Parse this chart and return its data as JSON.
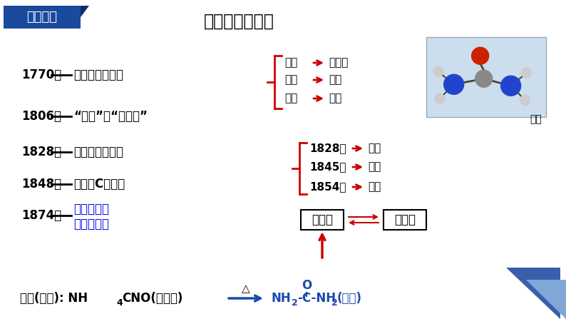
{
  "title": "有机化学的发展",
  "bg_color": "#ffffff",
  "badge_text": "知识链接",
  "badge_bg": "#1a4a9c",
  "badge_text_color": "#ffffff",
  "left_events": [
    {
      "year": "1770年",
      "text": "分离提纯有机物",
      "color": "#000000"
    },
    {
      "year": "1806年",
      "text": "“有机”和“生命力”",
      "color": "#000000"
    },
    {
      "year": "1828年",
      "text": "人工合成有机物",
      "color": "#000000"
    },
    {
      "year": "1848年",
      "text": "明确是C化合物",
      "color": "#000000"
    },
    {
      "year": "1874年",
      "text1": "碳氢化合物",
      "text2": "及其衍生物",
      "color": "#0000ee"
    }
  ],
  "right_top_brace_items": [
    "酒石",
    "尿液",
    "鸦片"
  ],
  "right_top_arrow_items": [
    "酒石酸",
    "尿素",
    "吗啡"
  ],
  "right_mid_brace_years": [
    "1828年",
    "1845年",
    "1854年"
  ],
  "right_mid_arrow_items": [
    "尿素",
    "醋酸",
    "油脂"
  ],
  "bottom_box_left": "有机物",
  "bottom_box_right": "无机物",
  "urea_img_label": "尿素",
  "tri_color1": "#3a5faa",
  "tri_color2": "#7fa8d8"
}
